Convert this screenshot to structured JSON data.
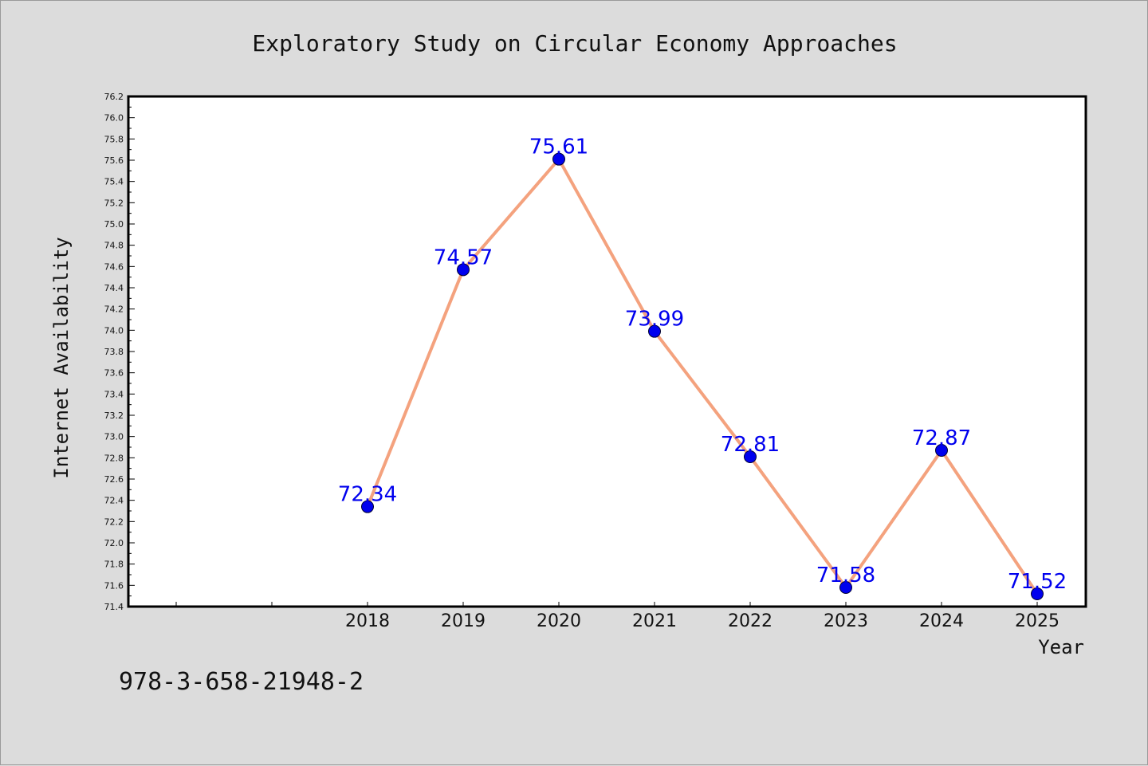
{
  "chart_data": {
    "type": "line",
    "title": "Exploratory Study on Circular Economy Approaches",
    "xlabel": "Year",
    "ylabel": "Internet Availability",
    "categories": [
      "2018",
      "2019",
      "2020",
      "2021",
      "2022",
      "2023",
      "2024",
      "2025"
    ],
    "series": [
      {
        "values": [
          72.34,
          74.57,
          75.61,
          73.99,
          72.81,
          71.58,
          72.87,
          71.52
        ],
        "data_labels": [
          "72.34",
          "74.57",
          "75.61",
          "73.99",
          "72.81",
          "71.58",
          "72.87",
          "71.52"
        ]
      }
    ],
    "ylim": [
      71.4,
      76.2
    ],
    "y_ticks": [
      "71.4",
      "71.6",
      "71.8",
      "72.0",
      "72.2",
      "72.4",
      "72.6",
      "72.8",
      "73.0",
      "73.2",
      "73.4",
      "73.6",
      "73.8",
      "74.0",
      "74.2",
      "74.4",
      "74.6",
      "74.8",
      "75.0",
      "75.2",
      "75.4",
      "75.6",
      "75.8",
      "76.0",
      "76.2"
    ],
    "grid": false,
    "colors": {
      "line": "#f4a27e",
      "marker": "#0000ee",
      "data_label": "#0000ee",
      "plot_background": "#ffffff",
      "figure_background": "#dcdcdc"
    }
  },
  "footer": {
    "code": "978-3-658-21948-2"
  }
}
